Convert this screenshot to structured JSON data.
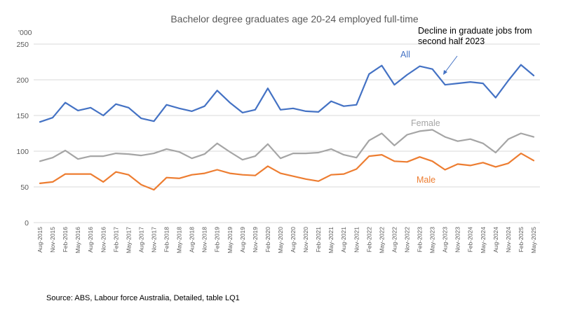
{
  "chart_data": {
    "type": "line",
    "title": "Bachelor degree graduates age 20-24 employed full-time",
    "unit_label": "'000",
    "ylim": [
      0,
      250
    ],
    "yticks": [
      0,
      50,
      100,
      150,
      200,
      250
    ],
    "grid": true,
    "x": [
      "Aug-2015",
      "Nov-2015",
      "Feb-2016",
      "May-2016",
      "Aug-2016",
      "Nov-2016",
      "Feb-2017",
      "May-2017",
      "Aug-2017",
      "Nov-2017",
      "Feb-2018",
      "May-2018",
      "Aug-2018",
      "Nov-2018",
      "Feb-2019",
      "May-2019",
      "Aug-2019",
      "Nov-2019",
      "Feb-2020",
      "May-2020",
      "Aug-2020",
      "Nov-2020",
      "Feb-2021",
      "May-2021",
      "Aug-2021",
      "Nov-2021",
      "Feb-2022",
      "May-2022",
      "Aug-2022",
      "Nov-2022",
      "Feb-2023",
      "May-2023",
      "Aug-2023",
      "Nov-2023",
      "Feb-2024",
      "May-2024",
      "Aug-2024",
      "Nov-2024",
      "Feb-2025",
      "May-2025"
    ],
    "series": [
      {
        "name": "All",
        "color": "#4472c4",
        "values": [
          141,
          147,
          168,
          157,
          161,
          150,
          166,
          161,
          146,
          142,
          165,
          160,
          156,
          163,
          185,
          168,
          154,
          158,
          188,
          158,
          160,
          156,
          155,
          170,
          163,
          165,
          208,
          220,
          193,
          207,
          219,
          215,
          193,
          195,
          197,
          195,
          175,
          199,
          221,
          206
        ]
      },
      {
        "name": "Female",
        "color": "#a5a5a5",
        "values": [
          86,
          91,
          101,
          89,
          93,
          93,
          97,
          96,
          94,
          97,
          103,
          99,
          90,
          96,
          111,
          99,
          88,
          93,
          110,
          90,
          97,
          97,
          98,
          103,
          95,
          91,
          115,
          125,
          108,
          123,
          128,
          130,
          120,
          114,
          117,
          111,
          98,
          117,
          125,
          120
        ]
      },
      {
        "name": "Male",
        "color": "#ed7d31",
        "values": [
          55,
          57,
          68,
          68,
          68,
          57,
          71,
          67,
          53,
          46,
          63,
          62,
          67,
          69,
          74,
          69,
          67,
          66,
          79,
          69,
          65,
          61,
          58,
          67,
          68,
          75,
          93,
          95,
          86,
          85,
          92,
          86,
          74,
          82,
          80,
          84,
          78,
          83,
          97,
          87
        ]
      }
    ],
    "annotation": {
      "lines": [
        "Decline in graduate jobs from",
        "second half  2023"
      ],
      "points_to": "Aug-2023"
    },
    "source": "Source: ABS, Labour force Australia, Detailed, table LQ1"
  }
}
